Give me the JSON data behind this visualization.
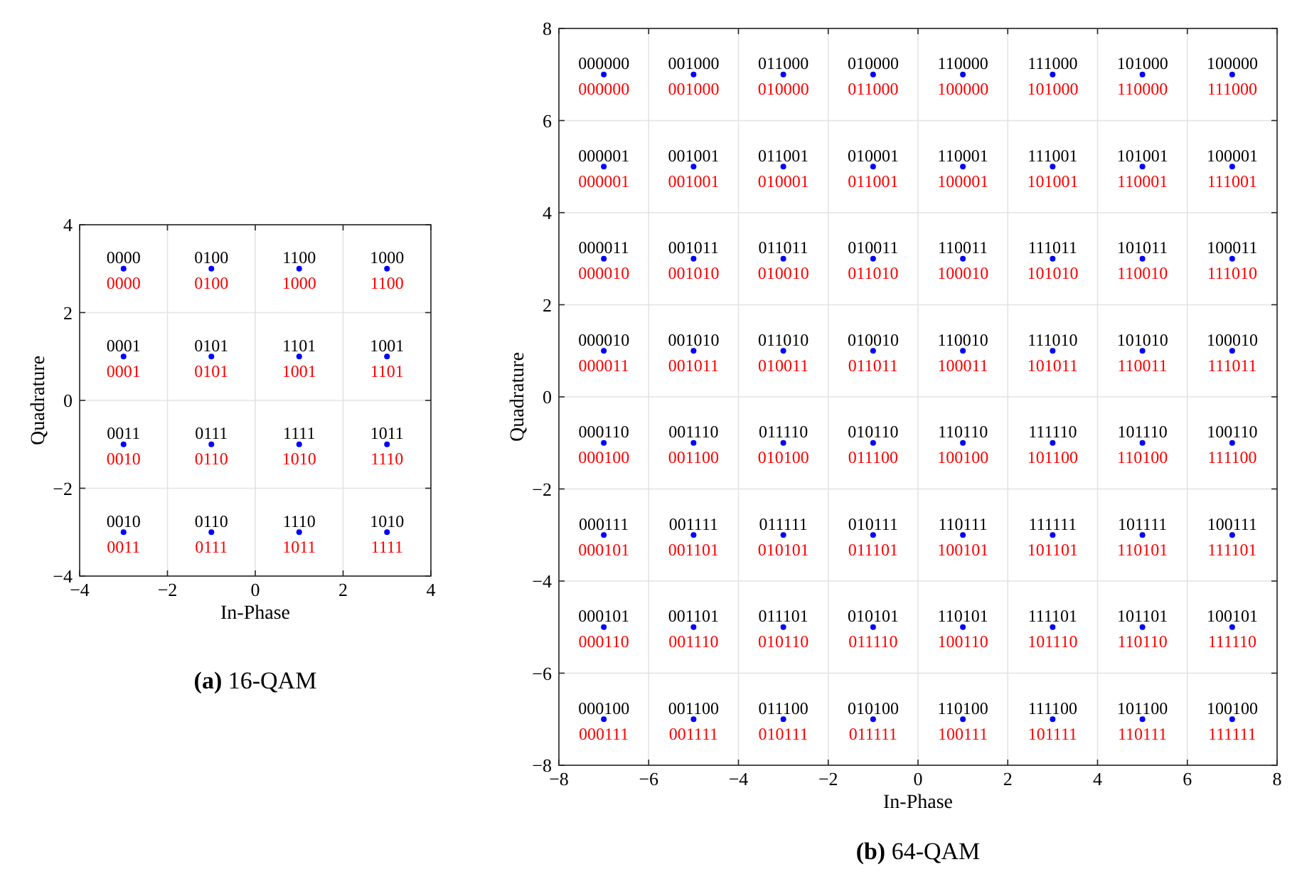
{
  "chart_data": [
    {
      "type": "scatter",
      "title": "(a) 16-QAM",
      "xlabel": "In-Phase",
      "ylabel": "Quadrature",
      "xlim": [
        -4,
        4
      ],
      "ylim": [
        -4,
        4
      ],
      "xticks": [
        -4,
        -2,
        0,
        2,
        4
      ],
      "yticks": [
        -4,
        -2,
        0,
        2,
        4
      ],
      "grid": true,
      "marker": "circle",
      "color": "#0000ff",
      "x": [
        -3,
        -1,
        1,
        3,
        -3,
        -1,
        1,
        3,
        -3,
        -1,
        1,
        3,
        -3,
        -1,
        1,
        3
      ],
      "values": [
        3,
        3,
        3,
        3,
        1,
        1,
        1,
        1,
        -1,
        -1,
        -1,
        -1,
        -3,
        -3,
        -3,
        -3
      ],
      "annotations": [
        {
          "text": "0000",
          "x": -3,
          "y": 3
        },
        {
          "text": "0100",
          "x": -1,
          "y": 3
        },
        {
          "text": "1100",
          "x": 1,
          "y": 3
        },
        {
          "text": "1000",
          "x": 3,
          "y": 3
        },
        {
          "text": "0000",
          "x": -3,
          "y": 3
        },
        {
          "text": "0100",
          "x": -1,
          "y": 3
        },
        {
          "text": "1000",
          "x": 1,
          "y": 3
        },
        {
          "text": "1100",
          "x": 3,
          "y": 3
        },
        {
          "text": "0001",
          "x": -3,
          "y": 1
        },
        {
          "text": "0101",
          "x": -1,
          "y": 1
        },
        {
          "text": "1101",
          "x": 1,
          "y": 1
        },
        {
          "text": "1001",
          "x": 3,
          "y": 1
        },
        {
          "text": "0001",
          "x": -3,
          "y": 1
        },
        {
          "text": "0101",
          "x": -1,
          "y": 1
        },
        {
          "text": "1001",
          "x": 1,
          "y": 1
        },
        {
          "text": "1101",
          "x": 3,
          "y": 1
        },
        {
          "text": "0011",
          "x": -3,
          "y": -1
        },
        {
          "text": "0111",
          "x": -1,
          "y": -1
        },
        {
          "text": "1111",
          "x": 1,
          "y": -1
        },
        {
          "text": "1011",
          "x": 3,
          "y": -1
        },
        {
          "text": "0010",
          "x": -3,
          "y": -1
        },
        {
          "text": "0110",
          "x": -1,
          "y": -1
        },
        {
          "text": "1010",
          "x": 1,
          "y": -1
        },
        {
          "text": "1110",
          "x": 3,
          "y": -1
        },
        {
          "text": "0010",
          "x": -3,
          "y": -3
        },
        {
          "text": "0110",
          "x": -1,
          "y": -3
        },
        {
          "text": "1110",
          "x": 1,
          "y": -3
        },
        {
          "text": "1010",
          "x": 3,
          "y": -3
        },
        {
          "text": "0011",
          "x": -3,
          "y": -3
        },
        {
          "text": "0111",
          "x": -1,
          "y": -3
        },
        {
          "text": "1011",
          "x": 1,
          "y": -3
        },
        {
          "text": "1111",
          "x": 3,
          "y": -3
        }
      ]
    },
    {
      "type": "scatter",
      "title": "(b) 64-QAM",
      "xlabel": "In-Phase",
      "ylabel": "Quadrature",
      "xlim": [
        -8,
        8
      ],
      "ylim": [
        -8,
        8
      ],
      "xticks": [
        -8,
        -6,
        -4,
        -2,
        0,
        2,
        4,
        6,
        8
      ],
      "yticks": [
        -8,
        -6,
        -4,
        -2,
        0,
        2,
        4,
        6,
        8
      ],
      "grid": true,
      "marker": "circle",
      "color": "#0000ff",
      "x": [
        -7,
        -5,
        -3,
        -1,
        1,
        3,
        5,
        7,
        -7,
        -5,
        -3,
        -1,
        1,
        3,
        5,
        7,
        -7,
        -5,
        -3,
        -1,
        1,
        3,
        5,
        7,
        -7,
        -5,
        -3,
        -1,
        1,
        3,
        5,
        7,
        -7,
        -5,
        -3,
        -1,
        1,
        3,
        5,
        7,
        -7,
        -5,
        -3,
        -1,
        1,
        3,
        5,
        7,
        -7,
        -5,
        -3,
        -1,
        1,
        3,
        5,
        7,
        -7,
        -5,
        -3,
        -1,
        1,
        3,
        5,
        7
      ],
      "values": [
        7,
        7,
        7,
        7,
        7,
        7,
        7,
        7,
        5,
        5,
        5,
        5,
        5,
        5,
        5,
        5,
        3,
        3,
        3,
        3,
        3,
        3,
        3,
        3,
        1,
        1,
        1,
        1,
        1,
        1,
        1,
        1,
        -1,
        -1,
        -1,
        -1,
        -1,
        -1,
        -1,
        -1,
        -3,
        -3,
        -3,
        -3,
        -3,
        -3,
        -3,
        -3,
        -5,
        -5,
        -5,
        -5,
        -5,
        -5,
        -5,
        -5,
        -7,
        -7,
        -7,
        -7,
        -7,
        -7,
        -7,
        -7
      ],
      "annotations": [
        {
          "text": "000000",
          "x": -7,
          "y": 7
        },
        {
          "text": "001000",
          "x": -5,
          "y": 7
        },
        {
          "text": "011000",
          "x": -3,
          "y": 7
        },
        {
          "text": "010000",
          "x": -1,
          "y": 7
        },
        {
          "text": "110000",
          "x": 1,
          "y": 7
        },
        {
          "text": "111000",
          "x": 3,
          "y": 7
        },
        {
          "text": "101000",
          "x": 5,
          "y": 7
        },
        {
          "text": "100000",
          "x": 7,
          "y": 7
        },
        {
          "text": "000000",
          "x": -7,
          "y": 7
        },
        {
          "text": "001000",
          "x": -5,
          "y": 7
        },
        {
          "text": "010000",
          "x": -3,
          "y": 7
        },
        {
          "text": "011000",
          "x": -1,
          "y": 7
        },
        {
          "text": "100000",
          "x": 1,
          "y": 7
        },
        {
          "text": "101000",
          "x": 3,
          "y": 7
        },
        {
          "text": "110000",
          "x": 5,
          "y": 7
        },
        {
          "text": "111000",
          "x": 7,
          "y": 7
        },
        {
          "text": "000001",
          "x": -7,
          "y": 5
        },
        {
          "text": "001001",
          "x": -5,
          "y": 5
        },
        {
          "text": "011001",
          "x": -3,
          "y": 5
        },
        {
          "text": "010001",
          "x": -1,
          "y": 5
        },
        {
          "text": "110001",
          "x": 1,
          "y": 5
        },
        {
          "text": "111001",
          "x": 3,
          "y": 5
        },
        {
          "text": "101001",
          "x": 5,
          "y": 5
        },
        {
          "text": "100001",
          "x": 7,
          "y": 5
        },
        {
          "text": "000001",
          "x": -7,
          "y": 5
        },
        {
          "text": "001001",
          "x": -5,
          "y": 5
        },
        {
          "text": "010001",
          "x": -3,
          "y": 5
        },
        {
          "text": "011001",
          "x": -1,
          "y": 5
        },
        {
          "text": "100001",
          "x": 1,
          "y": 5
        },
        {
          "text": "101001",
          "x": 3,
          "y": 5
        },
        {
          "text": "110001",
          "x": 5,
          "y": 5
        },
        {
          "text": "111001",
          "x": 7,
          "y": 5
        },
        {
          "text": "000011",
          "x": -7,
          "y": 3
        },
        {
          "text": "001011",
          "x": -5,
          "y": 3
        },
        {
          "text": "011011",
          "x": -3,
          "y": 3
        },
        {
          "text": "010011",
          "x": -1,
          "y": 3
        },
        {
          "text": "110011",
          "x": 1,
          "y": 3
        },
        {
          "text": "111011",
          "x": 3,
          "y": 3
        },
        {
          "text": "101011",
          "x": 5,
          "y": 3
        },
        {
          "text": "100011",
          "x": 7,
          "y": 3
        },
        {
          "text": "000010",
          "x": -7,
          "y": 3
        },
        {
          "text": "001010",
          "x": -5,
          "y": 3
        },
        {
          "text": "010010",
          "x": -3,
          "y": 3
        },
        {
          "text": "011010",
          "x": -1,
          "y": 3
        },
        {
          "text": "100010",
          "x": 1,
          "y": 3
        },
        {
          "text": "101010",
          "x": 3,
          "y": 3
        },
        {
          "text": "110010",
          "x": 5,
          "y": 3
        },
        {
          "text": "111010",
          "x": 7,
          "y": 3
        },
        {
          "text": "000010",
          "x": -7,
          "y": 1
        },
        {
          "text": "001010",
          "x": -5,
          "y": 1
        },
        {
          "text": "011010",
          "x": -3,
          "y": 1
        },
        {
          "text": "010010",
          "x": -1,
          "y": 1
        },
        {
          "text": "110010",
          "x": 1,
          "y": 1
        },
        {
          "text": "111010",
          "x": 3,
          "y": 1
        },
        {
          "text": "101010",
          "x": 5,
          "y": 1
        },
        {
          "text": "100010",
          "x": 7,
          "y": 1
        },
        {
          "text": "000011",
          "x": -7,
          "y": 1
        },
        {
          "text": "001011",
          "x": -5,
          "y": 1
        },
        {
          "text": "010011",
          "x": -3,
          "y": 1
        },
        {
          "text": "011011",
          "x": -1,
          "y": 1
        },
        {
          "text": "100011",
          "x": 1,
          "y": 1
        },
        {
          "text": "101011",
          "x": 3,
          "y": 1
        },
        {
          "text": "110011",
          "x": 5,
          "y": 1
        },
        {
          "text": "111011",
          "x": 7,
          "y": 1
        },
        {
          "text": "000110",
          "x": -7,
          "y": -1
        },
        {
          "text": "001110",
          "x": -5,
          "y": -1
        },
        {
          "text": "011110",
          "x": -3,
          "y": -1
        },
        {
          "text": "010110",
          "x": -1,
          "y": -1
        },
        {
          "text": "110110",
          "x": 1,
          "y": -1
        },
        {
          "text": "111110",
          "x": 3,
          "y": -1
        },
        {
          "text": "101110",
          "x": 5,
          "y": -1
        },
        {
          "text": "100110",
          "x": 7,
          "y": -1
        },
        {
          "text": "000100",
          "x": -7,
          "y": -1
        },
        {
          "text": "001100",
          "x": -5,
          "y": -1
        },
        {
          "text": "010100",
          "x": -3,
          "y": -1
        },
        {
          "text": "011100",
          "x": -1,
          "y": -1
        },
        {
          "text": "100100",
          "x": 1,
          "y": -1
        },
        {
          "text": "101100",
          "x": 3,
          "y": -1
        },
        {
          "text": "110100",
          "x": 5,
          "y": -1
        },
        {
          "text": "111100",
          "x": 7,
          "y": -1
        },
        {
          "text": "000111",
          "x": -7,
          "y": -3
        },
        {
          "text": "001111",
          "x": -5,
          "y": -3
        },
        {
          "text": "011111",
          "x": -3,
          "y": -3
        },
        {
          "text": "010111",
          "x": -1,
          "y": -3
        },
        {
          "text": "110111",
          "x": 1,
          "y": -3
        },
        {
          "text": "111111",
          "x": 3,
          "y": -3
        },
        {
          "text": "101111",
          "x": 5,
          "y": -3
        },
        {
          "text": "100111",
          "x": 7,
          "y": -3
        },
        {
          "text": "000101",
          "x": -7,
          "y": -3
        },
        {
          "text": "001101",
          "x": -5,
          "y": -3
        },
        {
          "text": "010101",
          "x": -3,
          "y": -3
        },
        {
          "text": "011101",
          "x": -1,
          "y": -3
        },
        {
          "text": "100101",
          "x": 1,
          "y": -3
        },
        {
          "text": "101101",
          "x": 3,
          "y": -3
        },
        {
          "text": "110101",
          "x": 5,
          "y": -3
        },
        {
          "text": "111101",
          "x": 7,
          "y": -3
        },
        {
          "text": "000101",
          "x": -7,
          "y": -5
        },
        {
          "text": "001101",
          "x": -5,
          "y": -5
        },
        {
          "text": "011101",
          "x": -3,
          "y": -5
        },
        {
          "text": "010101",
          "x": -1,
          "y": -5
        },
        {
          "text": "110101",
          "x": 1,
          "y": -5
        },
        {
          "text": "111101",
          "x": 3,
          "y": -5
        },
        {
          "text": "101101",
          "x": 5,
          "y": -5
        },
        {
          "text": "100101",
          "x": 7,
          "y": -5
        },
        {
          "text": "000110",
          "x": -7,
          "y": -5
        },
        {
          "text": "001110",
          "x": -5,
          "y": -5
        },
        {
          "text": "010110",
          "x": -3,
          "y": -5
        },
        {
          "text": "011110",
          "x": -1,
          "y": -5
        },
        {
          "text": "100110",
          "x": 1,
          "y": -5
        },
        {
          "text": "101110",
          "x": 3,
          "y": -5
        },
        {
          "text": "110110",
          "x": 5,
          "y": -5
        },
        {
          "text": "111110",
          "x": 7,
          "y": -5
        },
        {
          "text": "000100",
          "x": -7,
          "y": -7
        },
        {
          "text": "001100",
          "x": -5,
          "y": -7
        },
        {
          "text": "011100",
          "x": -3,
          "y": -7
        },
        {
          "text": "010100",
          "x": -1,
          "y": -7
        },
        {
          "text": "110100",
          "x": 1,
          "y": -7
        },
        {
          "text": "111100",
          "x": 3,
          "y": -7
        },
        {
          "text": "101100",
          "x": 5,
          "y": -7
        },
        {
          "text": "100100",
          "x": 7,
          "y": -7
        },
        {
          "text": "000111",
          "x": -7,
          "y": -7
        },
        {
          "text": "001111",
          "x": -5,
          "y": -7
        },
        {
          "text": "010111",
          "x": -3,
          "y": -7
        },
        {
          "text": "011111",
          "x": -1,
          "y": -7
        },
        {
          "text": "100111",
          "x": 1,
          "y": -7
        },
        {
          "text": "101111",
          "x": 3,
          "y": -7
        },
        {
          "text": "110111",
          "x": 5,
          "y": -7
        },
        {
          "text": "111111",
          "x": 7,
          "y": -7
        }
      ]
    }
  ]
}
